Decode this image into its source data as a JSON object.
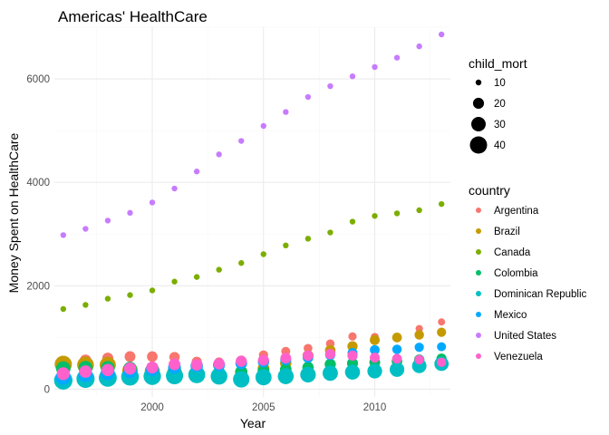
{
  "chart_data": {
    "type": "scatter",
    "title": "Americas' HealthCare",
    "xlabel": "Year",
    "ylabel": "Money Spent on HealthCare",
    "xlim": [
      1995.6,
      2013.4
    ],
    "ylim": [
      -150,
      7000
    ],
    "x_ticks": [
      2000,
      2005,
      2010
    ],
    "y_ticks": [
      0,
      2000,
      4000,
      6000
    ],
    "grid": true,
    "legend_position": "right",
    "size_legend": {
      "title": "child_mort",
      "values": [
        10,
        20,
        30,
        40
      ],
      "labels": [
        "10",
        "20",
        "30",
        "40"
      ]
    },
    "color_legend_title": "country",
    "x": [
      1996,
      1997,
      1998,
      1999,
      2000,
      2001,
      2002,
      2003,
      2004,
      2005,
      2006,
      2007,
      2008,
      2009,
      2010,
      2011,
      2012,
      2013
    ],
    "series": [
      {
        "name": "Argentina",
        "color": "#F8766D",
        "values": [
          440,
          560,
          600,
          630,
          630,
          620,
          530,
          520,
          560,
          660,
          730,
          790,
          880,
          1020,
          1010,
          980,
          1170,
          1300
        ],
        "child_mort": [
          22,
          21,
          20,
          19.5,
          19,
          18.5,
          18,
          17,
          16.5,
          16,
          15.5,
          15,
          14.5,
          14,
          13.5,
          13,
          12.5,
          12
        ]
      },
      {
        "name": "Brazil",
        "color": "#C49A00",
        "values": [
          480,
          470,
          470,
          360,
          350,
          330,
          310,
          300,
          330,
          400,
          500,
          650,
          750,
          830,
          950,
          1000,
          1050,
          1100
        ],
        "child_mort": [
          40,
          38,
          36,
          34,
          32,
          30,
          28,
          26,
          24,
          22,
          21,
          20,
          19,
          18,
          17.5,
          17,
          16.5,
          16
        ]
      },
      {
        "name": "Canada",
        "color": "#7CAE00",
        "values": [
          1550,
          1630,
          1750,
          1820,
          1910,
          2080,
          2170,
          2310,
          2440,
          2610,
          2780,
          2910,
          3030,
          3240,
          3350,
          3400,
          3460,
          3580
        ],
        "child_mort": [
          6.5,
          6.4,
          6.3,
          6.2,
          6.1,
          6.0,
          5.9,
          5.8,
          5.7,
          5.7,
          5.6,
          5.6,
          5.5,
          5.4,
          5.3,
          5.2,
          5.1,
          5.0
        ]
      },
      {
        "name": "Colombia",
        "color": "#00BE67",
        "values": [
          400,
          410,
          410,
          400,
          380,
          360,
          330,
          320,
          340,
          350,
          380,
          420,
          480,
          500,
          520,
          540,
          570,
          590
        ],
        "child_mort": [
          30,
          29,
          28,
          27,
          26,
          25,
          24,
          23,
          22.5,
          22,
          21.5,
          21,
          20.5,
          20,
          19.5,
          19,
          18.5,
          18
        ]
      },
      {
        "name": "Dominican Republic",
        "color": "#00BFC4",
        "values": [
          170,
          200,
          220,
          240,
          250,
          260,
          280,
          250,
          190,
          230,
          250,
          280,
          310,
          330,
          350,
          380,
          450,
          490
        ],
        "child_mort": [
          45,
          44,
          43,
          42,
          41,
          40,
          39,
          38,
          37,
          36,
          35,
          34,
          33,
          32,
          31,
          30.5,
          30,
          29.5
        ]
      },
      {
        "name": "Mexico",
        "color": "#00A9FF",
        "values": [
          230,
          270,
          310,
          340,
          380,
          420,
          450,
          470,
          500,
          530,
          570,
          610,
          660,
          700,
          760,
          770,
          810,
          820
        ],
        "child_mort": [
          32,
          30,
          29,
          27,
          26,
          25,
          24,
          23,
          22,
          21,
          20,
          19,
          18,
          17.5,
          17,
          16.5,
          16,
          15.5
        ]
      },
      {
        "name": "United States",
        "color": "#C77CFF",
        "values": [
          2980,
          3100,
          3260,
          3410,
          3610,
          3880,
          4210,
          4540,
          4800,
          5090,
          5360,
          5650,
          5860,
          6050,
          6230,
          6410,
          6630,
          6860
        ],
        "child_mort": [
          8.5,
          8.4,
          8.4,
          8.3,
          8.3,
          8.2,
          8.2,
          8.1,
          8.0,
          7.9,
          7.9,
          7.8,
          7.7,
          7.6,
          7.5,
          7.4,
          7.3,
          7.2
        ]
      },
      {
        "name": "Venezuela",
        "color": "#FF61CC",
        "values": [
          300,
          340,
          370,
          400,
          420,
          480,
          470,
          490,
          540,
          560,
          600,
          650,
          680,
          650,
          610,
          590,
          570,
          520
        ],
        "child_mort": [
          25,
          24,
          23.5,
          23,
          22.5,
          22,
          21.5,
          21,
          20.5,
          20,
          19.5,
          19,
          18.5,
          18,
          17.5,
          17,
          16.5,
          16
        ]
      }
    ]
  }
}
